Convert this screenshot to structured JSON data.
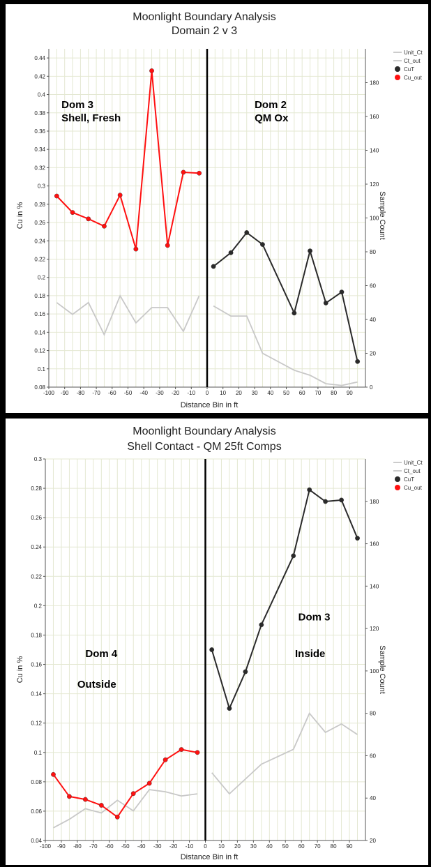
{
  "chart_data": [
    {
      "type": "line",
      "title": "Moonlight Boundary Analysis",
      "subtitle": "Domain 2 v 3",
      "xlabel": "Distance Bin in ft",
      "ylabel": "Cu in %",
      "y2label": "Sample Count",
      "xlim": [
        -100,
        100
      ],
      "ylim": [
        0.08,
        0.45
      ],
      "y2lim": [
        0,
        200
      ],
      "xticks": [
        -100,
        -90,
        -80,
        -70,
        -60,
        -50,
        -40,
        -30,
        -20,
        -10,
        0,
        10,
        20,
        30,
        40,
        50,
        60,
        70,
        80,
        90
      ],
      "yticks": [
        0.08,
        0.1,
        0.12,
        0.14,
        0.16,
        0.18,
        0.2,
        0.22,
        0.24,
        0.26,
        0.28,
        0.3,
        0.32,
        0.34,
        0.36,
        0.38,
        0.4,
        0.42,
        0.44
      ],
      "y2ticks": [
        0,
        20,
        40,
        60,
        80,
        100,
        120,
        140,
        160,
        180
      ],
      "grid": true,
      "legend_position": "right",
      "legend": [
        "Unit_Ct",
        "Ct_out",
        "CuT",
        "Cu_out"
      ],
      "series": [
        {
          "name": "Unit_Ct",
          "axis": "right",
          "color": "#c8c8c8",
          "marker": false,
          "x": [
            4,
            15,
            25,
            35,
            55,
            65,
            75,
            85,
            95
          ],
          "y": [
            48,
            42,
            42,
            20,
            10,
            7,
            2,
            1,
            3
          ]
        },
        {
          "name": "Ct_out",
          "axis": "right",
          "color": "#c8c8c8",
          "marker": false,
          "x": [
            -95,
            -85,
            -75,
            -65,
            -55,
            -45,
            -35,
            -25,
            -15,
            -5
          ],
          "y": [
            50,
            43,
            50,
            31,
            54,
            38,
            47,
            47,
            33,
            54
          ]
        },
        {
          "name": "CuT",
          "axis": "left",
          "color": "#2a2a2a",
          "marker": true,
          "x": [
            4,
            15,
            25,
            35,
            55,
            65,
            75,
            85,
            95
          ],
          "y": [
            0.212,
            0.227,
            0.249,
            0.236,
            0.161,
            0.229,
            0.172,
            0.184,
            0.108
          ]
        },
        {
          "name": "Cu_out",
          "axis": "left",
          "color": "#ff1010",
          "marker": true,
          "x": [
            -95,
            -85,
            -75,
            -65,
            -55,
            -45,
            -35,
            -25,
            -15,
            -5
          ],
          "y": [
            0.289,
            0.271,
            0.264,
            0.256,
            0.29,
            0.231,
            0.426,
            0.235,
            0.315,
            0.314
          ]
        }
      ],
      "annotations": [
        {
          "lines": [
            "Dom 3",
            "Shell, Fresh"
          ],
          "x": -92,
          "y": 0.385
        },
        {
          "lines": [
            "Dom 2",
            "QM Ox"
          ],
          "x": 30,
          "y": 0.385
        }
      ],
      "vline": 0
    },
    {
      "type": "line",
      "title": "Moonlight Boundary Analysis",
      "subtitle": "Shell Contact - QM 25ft Comps",
      "xlabel": "Distance Bin in ft",
      "ylabel": "Cu in %",
      "y2label": "Sample Count",
      "xlim": [
        -100,
        100
      ],
      "ylim": [
        0.04,
        0.3
      ],
      "y2lim": [
        20,
        200
      ],
      "xticks": [
        -100,
        -90,
        -80,
        -70,
        -60,
        -50,
        -40,
        -30,
        -20,
        -10,
        0,
        10,
        20,
        30,
        40,
        50,
        60,
        70,
        80,
        90
      ],
      "yticks": [
        0.04,
        0.06,
        0.08,
        0.1,
        0.12,
        0.14,
        0.16,
        0.18,
        0.2,
        0.22,
        0.24,
        0.26,
        0.28,
        0.3
      ],
      "y2ticks": [
        20,
        40,
        60,
        80,
        100,
        120,
        140,
        160,
        180
      ],
      "grid": true,
      "legend_position": "right",
      "legend": [
        "Unit_Ct",
        "Ct_out",
        "CuT",
        "Cu_out"
      ],
      "series": [
        {
          "name": "Unit_Ct",
          "axis": "right",
          "color": "#c8c8c8",
          "marker": false,
          "x": [
            4,
            15,
            25,
            35,
            55,
            65,
            75,
            85,
            95
          ],
          "y": [
            52,
            42,
            49,
            56,
            63,
            80,
            71,
            75,
            70
          ]
        },
        {
          "name": "Ct_out",
          "axis": "right",
          "color": "#c8c8c8",
          "marker": false,
          "x": [
            -95,
            -85,
            -75,
            -65,
            -55,
            -45,
            -35,
            -25,
            -15,
            -5
          ],
          "y": [
            26,
            30,
            35,
            33,
            39,
            34,
            44,
            43,
            41,
            42
          ]
        },
        {
          "name": "CuT",
          "axis": "left",
          "color": "#2a2a2a",
          "marker": true,
          "x": [
            4,
            15,
            25,
            35,
            55,
            65,
            75,
            85,
            95
          ],
          "y": [
            0.17,
            0.13,
            0.155,
            0.187,
            0.234,
            0.279,
            0.271,
            0.272,
            0.246
          ]
        },
        {
          "name": "Cu_out",
          "axis": "left",
          "color": "#ff1010",
          "marker": true,
          "x": [
            -95,
            -85,
            -75,
            -65,
            -55,
            -45,
            -35,
            -25,
            -15,
            -5
          ],
          "y": [
            0.085,
            0.07,
            0.068,
            0.064,
            0.056,
            0.072,
            0.079,
            0.095,
            0.102,
            0.1
          ]
        }
      ],
      "annotations": [
        {
          "lines": [
            "Dom 4"
          ],
          "x": -75,
          "y": 0.165
        },
        {
          "lines": [
            "Outside"
          ],
          "x": -80,
          "y": 0.144
        },
        {
          "lines": [
            "Dom 3"
          ],
          "x": 58,
          "y": 0.19
        },
        {
          "lines": [
            "Inside"
          ],
          "x": 56,
          "y": 0.165
        }
      ],
      "vline": 0
    }
  ]
}
